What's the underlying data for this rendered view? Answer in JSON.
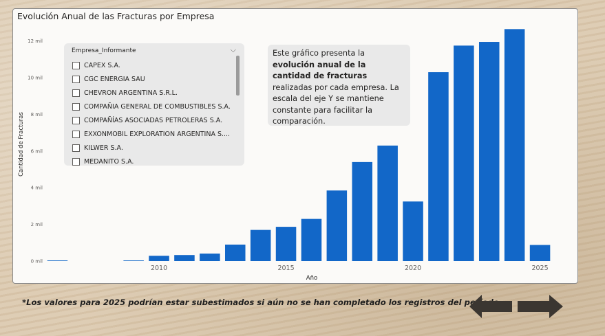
{
  "chart_data": {
    "type": "bar",
    "title": "Evolución Anual de las Fracturas por Empresa",
    "xlabel": "Año",
    "ylabel": "Cantidad de Fracturas",
    "categories": [
      2006,
      2007,
      2008,
      2009,
      2010,
      2011,
      2012,
      2013,
      2014,
      2015,
      2016,
      2017,
      2018,
      2019,
      2020,
      2021,
      2022,
      2023,
      2024,
      2025
    ],
    "values": [
      30,
      0,
      0,
      30,
      290,
      330,
      410,
      900,
      1700,
      1870,
      2300,
      3850,
      5400,
      6300,
      3250,
      10300,
      11750,
      11950,
      12650,
      880
    ],
    "color": "#1267c8",
    "xticks": [
      2010,
      2015,
      2020,
      2025
    ],
    "xtick_labels": [
      "2010",
      "2015",
      "2020",
      "2025"
    ],
    "yticks": [
      0,
      2000,
      4000,
      6000,
      8000,
      10000,
      12000
    ],
    "ytick_labels": [
      "0 mil",
      "2 mil",
      "4 mil",
      "6 mil",
      "8 mil",
      "10 mil",
      "12 mil"
    ],
    "ylim": [
      0,
      13000
    ]
  },
  "slicer": {
    "header": "Empresa_Informante",
    "chevron": "⌵",
    "items": [
      "CAPEX S.A.",
      "CGC ENERGIA SAU",
      "CHEVRON ARGENTINA S.R.L.",
      "COMPAÑIA GENERAL DE COMBUSTIBLES S.A.",
      "COMPAÑÍAS ASOCIADAS PETROLERAS S.A.",
      "EXXONMOBIL EXPLORATION ARGENTINA S....",
      "KILWER S.A.",
      "MEDANITO S.A."
    ]
  },
  "note": {
    "part1": "Este gráfico presenta la ",
    "bold": "evolución anual de la cantidad de fracturas",
    "part2": " realizadas por cada empresa. La escala del eje Y se mantiene constante para facilitar la comparación."
  },
  "footnote": "*Los valores para 2025 podrían estar subestimados si aún no se han completado los registros del período.",
  "navigation": {
    "back_icon": "arrow-left-icon",
    "forward_icon": "arrow-right-icon",
    "color": "#3b3631"
  }
}
